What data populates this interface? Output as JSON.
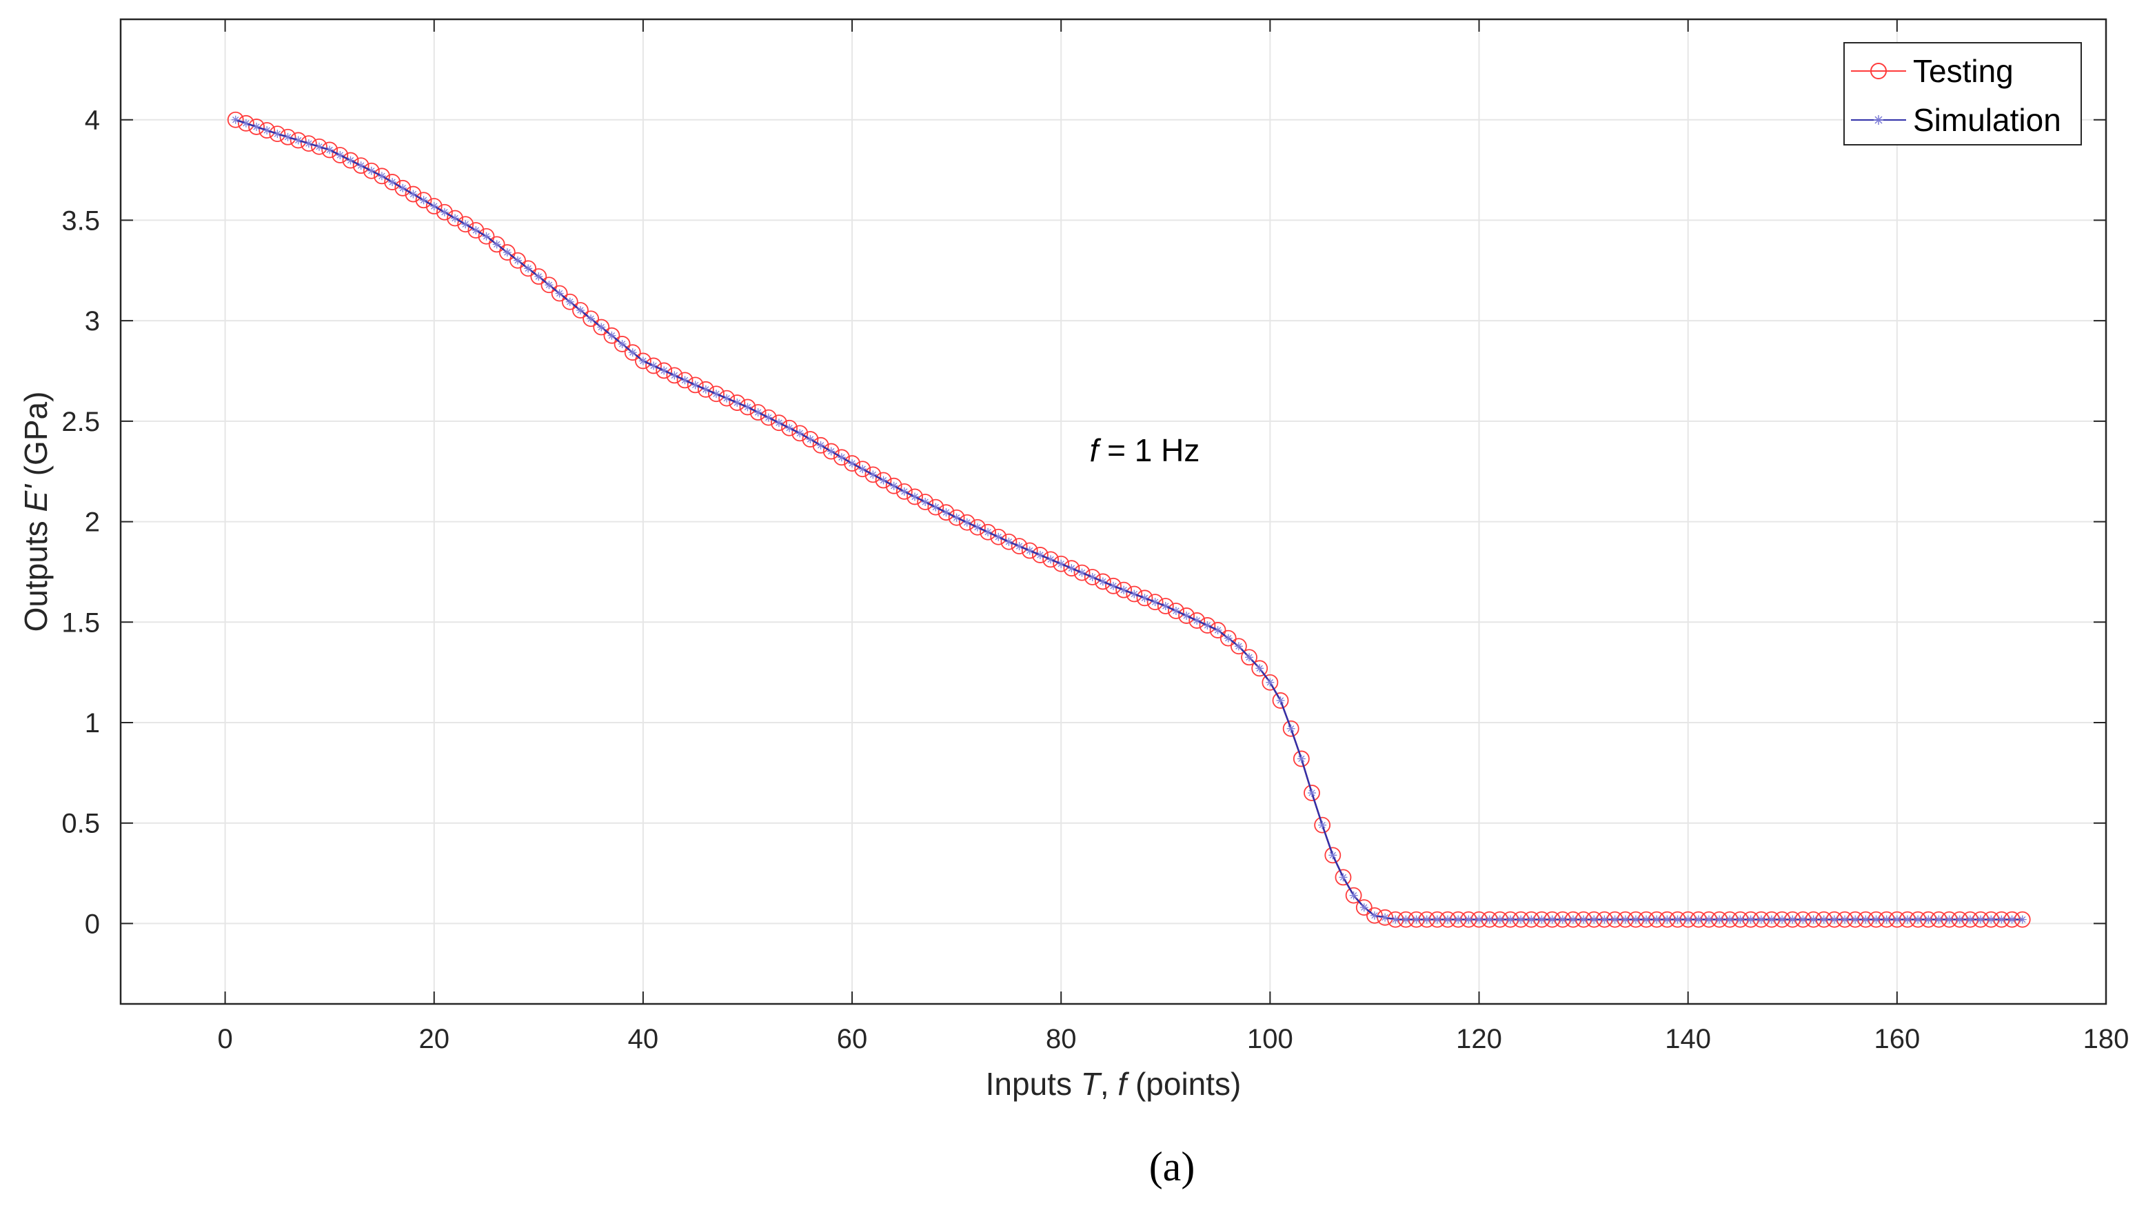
{
  "chart_data": {
    "type": "line",
    "xlabel": {
      "prefix": "Inputs ",
      "italic1": "T",
      "middle": ", ",
      "italic2": "f",
      "suffix": " (points)"
    },
    "ylabel": {
      "prefix": "Outputs ",
      "italic": "E'",
      "suffix": " (GPa)"
    },
    "xlim": [
      -10,
      180
    ],
    "ylim": [
      -0.4,
      4.5
    ],
    "xticks": [
      0,
      20,
      40,
      60,
      80,
      100,
      120,
      140,
      160,
      180
    ],
    "yticks": [
      0,
      0.5,
      1,
      1.5,
      2,
      2.5,
      3,
      3.5,
      4
    ],
    "grid": true,
    "legend_position": "top-right",
    "annotation": {
      "italic": "f",
      "text": " = 1 Hz",
      "x": 88,
      "y": 2.3
    },
    "panel_label": "(a)",
    "series": [
      {
        "name": "Testing",
        "color": "#ff3b3b",
        "marker": "circle",
        "line": true
      },
      {
        "name": "Simulation",
        "color": "#3030a8",
        "marker": "asterisk",
        "line": true
      }
    ],
    "x": [
      1,
      5,
      10,
      15,
      20,
      25,
      30,
      35,
      40,
      45,
      50,
      55,
      60,
      65,
      70,
      75,
      80,
      85,
      90,
      95,
      97,
      99,
      100,
      101,
      102,
      103,
      104,
      105,
      106,
      107,
      108,
      109,
      110,
      112,
      115,
      120,
      130,
      140,
      150,
      160,
      172
    ],
    "y": [
      4.0,
      3.93,
      3.85,
      3.72,
      3.57,
      3.42,
      3.22,
      3.01,
      2.8,
      2.68,
      2.57,
      2.44,
      2.29,
      2.15,
      2.02,
      1.9,
      1.79,
      1.68,
      1.58,
      1.46,
      1.38,
      1.27,
      1.2,
      1.11,
      0.97,
      0.82,
      0.65,
      0.49,
      0.34,
      0.23,
      0.14,
      0.08,
      0.04,
      0.02,
      0.02,
      0.02,
      0.02,
      0.02,
      0.02,
      0.02,
      0.02
    ]
  }
}
